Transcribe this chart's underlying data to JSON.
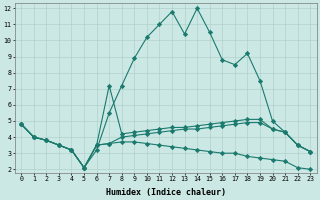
{
  "xlabel": "Humidex (Indice chaleur)",
  "background_color": "#cce8e4",
  "line_color": "#1a7a6e",
  "xlim": [
    -0.5,
    23.5
  ],
  "ylim": [
    1.8,
    12.3
  ],
  "xticks": [
    0,
    1,
    2,
    3,
    4,
    5,
    6,
    7,
    8,
    9,
    10,
    11,
    12,
    13,
    14,
    15,
    16,
    17,
    18,
    19,
    20,
    21,
    22,
    23
  ],
  "yticks": [
    2,
    3,
    4,
    5,
    6,
    7,
    8,
    9,
    10,
    11,
    12
  ],
  "series": [
    {
      "x": [
        0,
        1,
        2,
        3,
        4,
        5,
        6,
        7,
        8,
        9,
        10,
        11,
        12,
        13,
        14,
        15,
        16,
        17,
        18,
        19,
        20,
        21,
        22,
        23
      ],
      "y": [
        4.8,
        4.0,
        3.8,
        3.5,
        3.2,
        2.1,
        3.2,
        5.5,
        7.2,
        8.9,
        10.2,
        11.0,
        11.8,
        10.4,
        12.0,
        10.5,
        8.8,
        8.5,
        9.2,
        7.5,
        5.0,
        4.3,
        3.5,
        3.1
      ]
    },
    {
      "x": [
        0,
        1,
        2,
        3,
        4,
        5,
        6,
        7,
        8,
        9,
        10,
        11,
        12,
        13,
        14,
        15,
        16,
        17,
        18,
        19,
        20,
        21,
        22,
        23
      ],
      "y": [
        4.8,
        4.0,
        3.8,
        3.5,
        3.2,
        2.1,
        3.5,
        7.2,
        4.2,
        4.3,
        4.4,
        4.5,
        4.6,
        4.6,
        4.7,
        4.8,
        4.9,
        5.0,
        5.1,
        5.1,
        4.5,
        4.3,
        3.5,
        3.1
      ]
    },
    {
      "x": [
        0,
        1,
        2,
        3,
        4,
        5,
        6,
        7,
        8,
        9,
        10,
        11,
        12,
        13,
        14,
        15,
        16,
        17,
        18,
        19,
        20,
        21,
        22,
        23
      ],
      "y": [
        4.8,
        4.0,
        3.8,
        3.5,
        3.2,
        2.1,
        3.5,
        3.6,
        3.7,
        3.7,
        3.6,
        3.5,
        3.4,
        3.3,
        3.2,
        3.1,
        3.0,
        3.0,
        2.8,
        2.7,
        2.6,
        2.5,
        2.1,
        2.0
      ]
    },
    {
      "x": [
        0,
        1,
        2,
        3,
        4,
        5,
        6,
        7,
        8,
        9,
        10,
        11,
        12,
        13,
        14,
        15,
        16,
        17,
        18,
        19,
        20,
        21,
        22,
        23
      ],
      "y": [
        4.8,
        4.0,
        3.8,
        3.5,
        3.2,
        2.1,
        3.5,
        3.6,
        4.0,
        4.1,
        4.2,
        4.3,
        4.4,
        4.5,
        4.5,
        4.6,
        4.7,
        4.8,
        4.9,
        4.9,
        4.5,
        4.3,
        3.5,
        3.1
      ]
    }
  ]
}
